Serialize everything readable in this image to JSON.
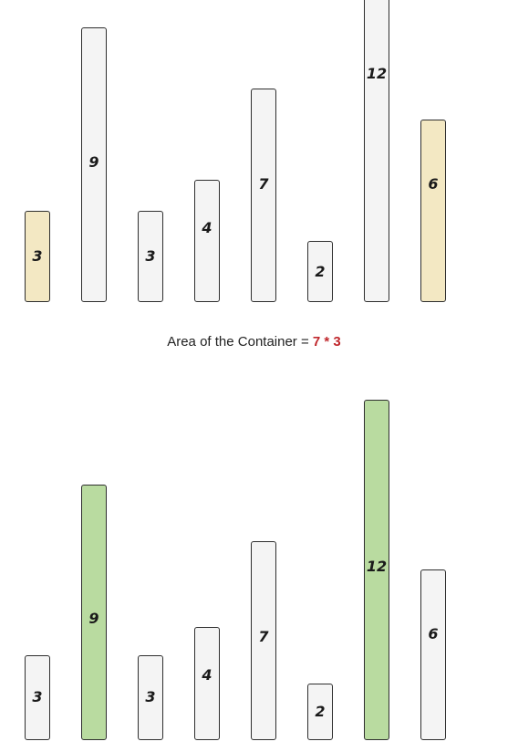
{
  "colors": {
    "default_fill": "#f4f4f4",
    "selected_fill_top": "#f3e8c3",
    "selected_fill_bottom": "#b9dba0",
    "expression_color": "#c0282d"
  },
  "top_diagram": {
    "bars": [
      {
        "value": 3,
        "label": "3",
        "highlight": "yellow"
      },
      {
        "value": 9,
        "label": "9",
        "highlight": "none"
      },
      {
        "value": 3,
        "label": "3",
        "highlight": "none"
      },
      {
        "value": 4,
        "label": "4",
        "highlight": "none"
      },
      {
        "value": 7,
        "label": "7",
        "highlight": "none"
      },
      {
        "value": 2,
        "label": "2",
        "highlight": "none"
      },
      {
        "value": 12,
        "label": "12",
        "highlight": "none"
      },
      {
        "value": 6,
        "label": "6",
        "highlight": "yellow"
      }
    ]
  },
  "caption": {
    "prefix": "Area of the Container = ",
    "expression": "7 * 3"
  },
  "bottom_diagram": {
    "bars": [
      {
        "value": 3,
        "label": "3",
        "highlight": "none"
      },
      {
        "value": 9,
        "label": "9",
        "highlight": "green"
      },
      {
        "value": 3,
        "label": "3",
        "highlight": "none"
      },
      {
        "value": 4,
        "label": "4",
        "highlight": "none"
      },
      {
        "value": 7,
        "label": "7",
        "highlight": "none"
      },
      {
        "value": 2,
        "label": "2",
        "highlight": "none"
      },
      {
        "value": 12,
        "label": "12",
        "highlight": "green"
      },
      {
        "value": 6,
        "label": "6",
        "highlight": "none"
      }
    ]
  }
}
